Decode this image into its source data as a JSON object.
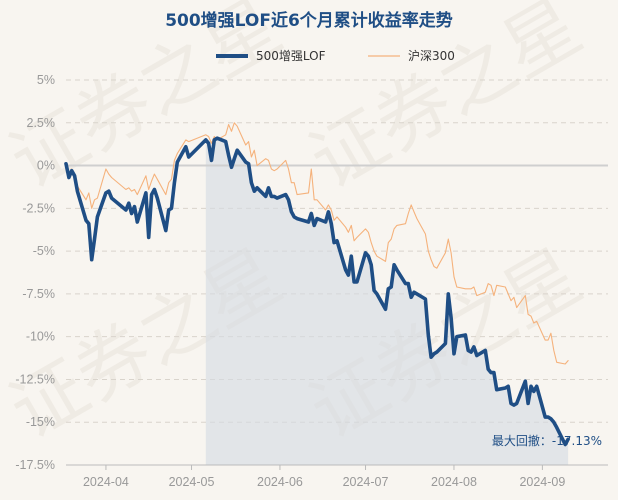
{
  "chart_data": {
    "type": "line",
    "title": "500增强LOF近6个月累计收益率走势",
    "legend_position": "top-center",
    "grid": true,
    "ylim": [
      -17.5,
      5
    ],
    "yticks": [
      5,
      2.5,
      0,
      -2.5,
      -5,
      -7.5,
      -10,
      -12.5,
      -15,
      -17.5
    ],
    "ytick_labels": [
      "5%",
      "2.5%",
      "0%",
      "-2.5%",
      "-5%",
      "-7.5%",
      "-10%",
      "-12.5%",
      "-15%",
      "-17.5%"
    ],
    "xlim": [
      "2024-03-18",
      "2024-09-24"
    ],
    "xticks": [
      "2024-04-01",
      "2024-05-01",
      "2024-06-01",
      "2024-07-01",
      "2024-08-01",
      "2024-09-01"
    ],
    "xtick_labels": [
      "2024-04",
      "2024-05",
      "2024-06",
      "2024-07",
      "2024-08",
      "2024-09"
    ],
    "shade_start": "2024-05-06",
    "drawdown_label": "最大回撤：-17.13%",
    "series": [
      {
        "name": "500增强LOF",
        "color": "#1f4e85",
        "points": [
          [
            "2024-03-18",
            0.1
          ],
          [
            "2024-03-19",
            -0.7
          ],
          [
            "2024-03-20",
            -0.3
          ],
          [
            "2024-03-21",
            -0.6
          ],
          [
            "2024-03-22",
            -1.5
          ],
          [
            "2024-03-25",
            -3.2
          ],
          [
            "2024-03-26",
            -3.4
          ],
          [
            "2024-03-27",
            -5.5
          ],
          [
            "2024-03-28",
            -4.3
          ],
          [
            "2024-03-29",
            -3.0
          ],
          [
            "2024-04-01",
            -1.6
          ],
          [
            "2024-04-02",
            -1.5
          ],
          [
            "2024-04-03",
            -1.9
          ],
          [
            "2024-04-08",
            -2.6
          ],
          [
            "2024-04-09",
            -2.2
          ],
          [
            "2024-04-10",
            -2.8
          ],
          [
            "2024-04-11",
            -2.4
          ],
          [
            "2024-04-12",
            -3.3
          ],
          [
            "2024-04-15",
            -1.6
          ],
          [
            "2024-04-16",
            -4.2
          ],
          [
            "2024-04-17",
            -1.7
          ],
          [
            "2024-04-18",
            -1.4
          ],
          [
            "2024-04-19",
            -1.9
          ],
          [
            "2024-04-22",
            -3.8
          ],
          [
            "2024-04-23",
            -2.6
          ],
          [
            "2024-04-24",
            -2.5
          ],
          [
            "2024-04-25",
            -1.0
          ],
          [
            "2024-04-26",
            0.2
          ],
          [
            "2024-04-29",
            1.1
          ],
          [
            "2024-04-30",
            0.5
          ],
          [
            "2024-05-06",
            1.5
          ],
          [
            "2024-05-07",
            1.3
          ],
          [
            "2024-05-08",
            0.3
          ],
          [
            "2024-05-09",
            1.5
          ],
          [
            "2024-05-10",
            1.6
          ],
          [
            "2024-05-13",
            1.4
          ],
          [
            "2024-05-14",
            0.6
          ],
          [
            "2024-05-15",
            -0.1
          ],
          [
            "2024-05-16",
            0.4
          ],
          [
            "2024-05-17",
            0.9
          ],
          [
            "2024-05-20",
            0.2
          ],
          [
            "2024-05-21",
            0.1
          ],
          [
            "2024-05-22",
            -1.0
          ],
          [
            "2024-05-23",
            -1.5
          ],
          [
            "2024-05-24",
            -1.3
          ],
          [
            "2024-05-27",
            -1.8
          ],
          [
            "2024-05-28",
            -1.3
          ],
          [
            "2024-05-29",
            -1.8
          ],
          [
            "2024-05-30",
            -1.8
          ],
          [
            "2024-05-31",
            -1.9
          ],
          [
            "2024-06-03",
            -1.7
          ],
          [
            "2024-06-04",
            -2.0
          ],
          [
            "2024-06-05",
            -2.7
          ],
          [
            "2024-06-06",
            -3.0
          ],
          [
            "2024-06-07",
            -3.1
          ],
          [
            "2024-06-11",
            -3.3
          ],
          [
            "2024-06-12",
            -2.8
          ],
          [
            "2024-06-13",
            -3.5
          ],
          [
            "2024-06-14",
            -3.1
          ],
          [
            "2024-06-17",
            -3.3
          ],
          [
            "2024-06-18",
            -2.7
          ],
          [
            "2024-06-19",
            -3.4
          ],
          [
            "2024-06-20",
            -4.5
          ],
          [
            "2024-06-21",
            -4.4
          ],
          [
            "2024-06-24",
            -6.1
          ],
          [
            "2024-06-25",
            -6.4
          ],
          [
            "2024-06-26",
            -5.3
          ],
          [
            "2024-06-27",
            -6.8
          ],
          [
            "2024-06-28",
            -6.8
          ],
          [
            "2024-07-01",
            -5.1
          ],
          [
            "2024-07-02",
            -5.3
          ],
          [
            "2024-07-03",
            -5.8
          ],
          [
            "2024-07-04",
            -7.3
          ],
          [
            "2024-07-05",
            -7.5
          ],
          [
            "2024-07-08",
            -8.4
          ],
          [
            "2024-07-09",
            -7.2
          ],
          [
            "2024-07-10",
            -7.1
          ],
          [
            "2024-07-11",
            -5.8
          ],
          [
            "2024-07-12",
            -6.1
          ],
          [
            "2024-07-15",
            -6.9
          ],
          [
            "2024-07-16",
            -6.9
          ],
          [
            "2024-07-17",
            -7.7
          ],
          [
            "2024-07-18",
            -7.4
          ],
          [
            "2024-07-19",
            -7.5
          ],
          [
            "2024-07-22",
            -7.8
          ],
          [
            "2024-07-23",
            -9.9
          ],
          [
            "2024-07-24",
            -11.2
          ],
          [
            "2024-07-25",
            -11.0
          ],
          [
            "2024-07-26",
            -10.9
          ],
          [
            "2024-07-29",
            -10.4
          ],
          [
            "2024-07-30",
            -7.5
          ],
          [
            "2024-07-31",
            -8.9
          ],
          [
            "2024-08-01",
            -11.0
          ],
          [
            "2024-08-02",
            -10.0
          ],
          [
            "2024-08-05",
            -9.9
          ],
          [
            "2024-08-06",
            -10.8
          ],
          [
            "2024-08-07",
            -10.9
          ],
          [
            "2024-08-08",
            -10.6
          ],
          [
            "2024-08-09",
            -11.1
          ],
          [
            "2024-08-12",
            -10.8
          ],
          [
            "2024-08-13",
            -11.9
          ],
          [
            "2024-08-14",
            -12.1
          ],
          [
            "2024-08-15",
            -12.1
          ],
          [
            "2024-08-16",
            -13.1
          ],
          [
            "2024-08-19",
            -13.0
          ],
          [
            "2024-08-20",
            -12.9
          ],
          [
            "2024-08-21",
            -13.9
          ],
          [
            "2024-08-22",
            -14.0
          ],
          [
            "2024-08-23",
            -13.9
          ],
          [
            "2024-08-26",
            -12.6
          ],
          [
            "2024-08-27",
            -13.9
          ],
          [
            "2024-08-28",
            -12.9
          ],
          [
            "2024-08-29",
            -13.2
          ],
          [
            "2024-08-30",
            -12.9
          ],
          [
            "2024-09-02",
            -14.7
          ],
          [
            "2024-09-03",
            -14.7
          ],
          [
            "2024-09-04",
            -14.8
          ],
          [
            "2024-09-05",
            -15.0
          ],
          [
            "2024-09-06",
            -15.3
          ],
          [
            "2024-09-09",
            -16.3
          ],
          [
            "2024-09-10",
            -16.0
          ]
        ]
      },
      {
        "name": "沪深300",
        "color": "#f5b27c",
        "points": [
          [
            "2024-03-18",
            0.1
          ],
          [
            "2024-03-19",
            -0.5
          ],
          [
            "2024-03-20",
            -0.2
          ],
          [
            "2024-03-21",
            -0.6
          ],
          [
            "2024-03-22",
            -1.2
          ],
          [
            "2024-03-25",
            -2.0
          ],
          [
            "2024-03-26",
            -1.6
          ],
          [
            "2024-03-27",
            -2.5
          ],
          [
            "2024-03-28",
            -2.0
          ],
          [
            "2024-03-29",
            -1.9
          ],
          [
            "2024-04-01",
            -0.2
          ],
          [
            "2024-04-02",
            -0.5
          ],
          [
            "2024-04-03",
            -0.7
          ],
          [
            "2024-04-08",
            -1.4
          ],
          [
            "2024-04-09",
            -1.3
          ],
          [
            "2024-04-10",
            -1.5
          ],
          [
            "2024-04-11",
            -1.4
          ],
          [
            "2024-04-12",
            -1.7
          ],
          [
            "2024-04-15",
            -0.6
          ],
          [
            "2024-04-16",
            -1.4
          ],
          [
            "2024-04-17",
            -0.9
          ],
          [
            "2024-04-18",
            -0.5
          ],
          [
            "2024-04-19",
            -0.8
          ],
          [
            "2024-04-22",
            -1.7
          ],
          [
            "2024-04-23",
            -1.0
          ],
          [
            "2024-04-24",
            -0.8
          ],
          [
            "2024-04-25",
            0.3
          ],
          [
            "2024-04-26",
            0.7
          ],
          [
            "2024-04-29",
            1.5
          ],
          [
            "2024-04-30",
            1.4
          ],
          [
            "2024-05-06",
            1.8
          ],
          [
            "2024-05-07",
            1.7
          ],
          [
            "2024-05-08",
            1.3
          ],
          [
            "2024-05-09",
            1.7
          ],
          [
            "2024-05-10",
            1.5
          ],
          [
            "2024-05-13",
            1.8
          ],
          [
            "2024-05-14",
            2.4
          ],
          [
            "2024-05-15",
            2.0
          ],
          [
            "2024-05-16",
            2.5
          ],
          [
            "2024-05-17",
            2.3
          ],
          [
            "2024-05-20",
            1.2
          ],
          [
            "2024-05-21",
            1.4
          ],
          [
            "2024-05-22",
            0.5
          ],
          [
            "2024-05-23",
            0.9
          ],
          [
            "2024-05-24",
            0.0
          ],
          [
            "2024-05-27",
            0.4
          ],
          [
            "2024-05-28",
            0.3
          ],
          [
            "2024-05-29",
            -0.2
          ],
          [
            "2024-05-30",
            -0.3
          ],
          [
            "2024-05-31",
            -0.2
          ],
          [
            "2024-06-03",
            0.3
          ],
          [
            "2024-06-04",
            -0.2
          ],
          [
            "2024-06-05",
            -1.0
          ],
          [
            "2024-06-06",
            -1.0
          ],
          [
            "2024-06-07",
            -1.7
          ],
          [
            "2024-06-11",
            -1.6
          ],
          [
            "2024-06-12",
            -0.2
          ],
          [
            "2024-06-13",
            -2.0
          ],
          [
            "2024-06-14",
            -2.0
          ],
          [
            "2024-06-17",
            -2.6
          ],
          [
            "2024-06-18",
            -2.3
          ],
          [
            "2024-06-19",
            -2.6
          ],
          [
            "2024-06-20",
            -3.2
          ],
          [
            "2024-06-21",
            -3.0
          ],
          [
            "2024-06-24",
            -3.6
          ],
          [
            "2024-06-25",
            -3.9
          ],
          [
            "2024-06-26",
            -3.5
          ],
          [
            "2024-06-27",
            -4.4
          ],
          [
            "2024-06-28",
            -4.2
          ],
          [
            "2024-07-01",
            -3.7
          ],
          [
            "2024-07-02",
            -3.9
          ],
          [
            "2024-07-03",
            -4.5
          ],
          [
            "2024-07-04",
            -5.0
          ],
          [
            "2024-07-05",
            -5.3
          ],
          [
            "2024-07-08",
            -5.6
          ],
          [
            "2024-07-09",
            -4.5
          ],
          [
            "2024-07-10",
            -4.3
          ],
          [
            "2024-07-11",
            -3.7
          ],
          [
            "2024-07-12",
            -3.5
          ],
          [
            "2024-07-15",
            -3.4
          ],
          [
            "2024-07-16",
            -2.8
          ],
          [
            "2024-07-17",
            -2.3
          ],
          [
            "2024-07-18",
            -2.7
          ],
          [
            "2024-07-19",
            -3.1
          ],
          [
            "2024-07-22",
            -4.0
          ],
          [
            "2024-07-23",
            -5.0
          ],
          [
            "2024-07-24",
            -5.5
          ],
          [
            "2024-07-25",
            -5.9
          ],
          [
            "2024-07-26",
            -6.0
          ],
          [
            "2024-07-29",
            -5.1
          ],
          [
            "2024-07-30",
            -4.3
          ],
          [
            "2024-07-31",
            -5.1
          ],
          [
            "2024-08-01",
            -6.5
          ],
          [
            "2024-08-02",
            -7.1
          ],
          [
            "2024-08-05",
            -7.2
          ],
          [
            "2024-08-06",
            -7.2
          ],
          [
            "2024-08-07",
            -7.2
          ],
          [
            "2024-08-08",
            -7.1
          ],
          [
            "2024-08-09",
            -7.6
          ],
          [
            "2024-08-12",
            -7.4
          ],
          [
            "2024-08-13",
            -6.9
          ],
          [
            "2024-08-14",
            -7.0
          ],
          [
            "2024-08-15",
            -7.6
          ],
          [
            "2024-08-16",
            -7.0
          ],
          [
            "2024-08-19",
            -7.1
          ],
          [
            "2024-08-20",
            -7.5
          ],
          [
            "2024-08-21",
            -7.9
          ],
          [
            "2024-08-22",
            -7.7
          ],
          [
            "2024-08-23",
            -8.3
          ],
          [
            "2024-08-26",
            -7.6
          ],
          [
            "2024-08-27",
            -8.7
          ],
          [
            "2024-08-28",
            -8.8
          ],
          [
            "2024-08-29",
            -9.2
          ],
          [
            "2024-08-30",
            -9.1
          ],
          [
            "2024-09-02",
            -10.2
          ],
          [
            "2024-09-03",
            -10.2
          ],
          [
            "2024-09-04",
            -9.8
          ],
          [
            "2024-09-05",
            -10.8
          ],
          [
            "2024-09-06",
            -11.5
          ],
          [
            "2024-09-09",
            -11.6
          ],
          [
            "2024-09-10",
            -11.4
          ]
        ]
      }
    ]
  }
}
